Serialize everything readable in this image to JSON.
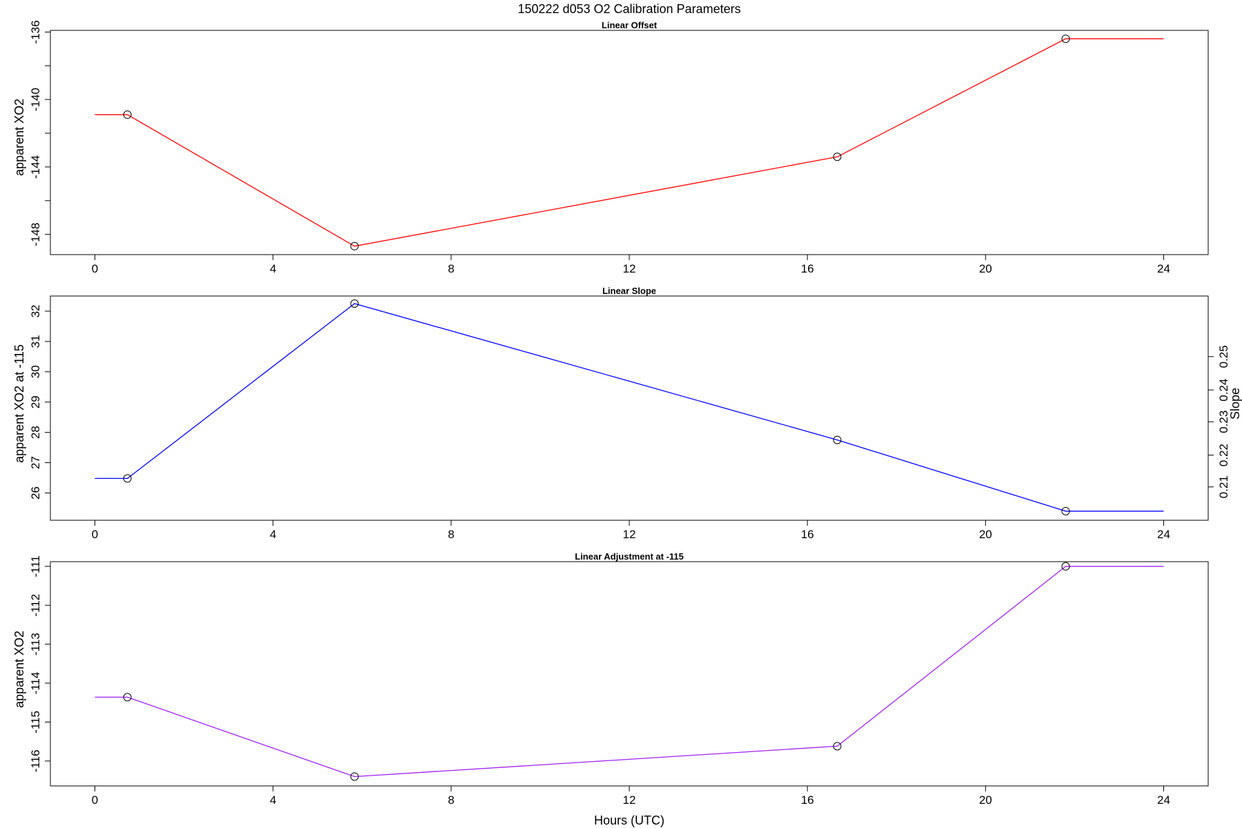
{
  "figure": {
    "title": "150222   d053   O2 Calibration Parameters",
    "xlabel": "Hours (UTC)"
  },
  "chart_data": [
    {
      "type": "line",
      "title": "Linear Offset",
      "xlabel": "",
      "ylabel": "apparent XO2",
      "xlim": [
        -1.0,
        25.0
      ],
      "ylim": [
        -149.2,
        -135.9
      ],
      "x_ticks": [
        0,
        4,
        8,
        12,
        16,
        20,
        24
      ],
      "y_ticks": [
        -136,
        -140,
        -144,
        -148
      ],
      "y_minor_ticks": [
        -138,
        -142,
        -146
      ],
      "color": "#ff0000",
      "x": [
        0.0,
        0.73,
        5.83,
        16.67,
        21.8,
        24.0
      ],
      "values": [
        -140.9,
        -140.9,
        -148.7,
        -143.4,
        -136.4,
        -136.4
      ],
      "markers": {
        "x": [
          0.73,
          5.83,
          16.67,
          21.8
        ],
        "values": [
          -140.9,
          -148.7,
          -143.4,
          -136.4
        ]
      }
    },
    {
      "type": "line",
      "title": "Linear Slope",
      "xlabel": "",
      "ylabel": "apparent XO2 at -115",
      "y2label": "Slope",
      "xlim": [
        -1.0,
        25.0
      ],
      "ylim": [
        25.1,
        32.5
      ],
      "x_ticks": [
        0,
        4,
        8,
        12,
        16,
        20,
        24
      ],
      "y_ticks": [
        26,
        27,
        28,
        29,
        30,
        31,
        32
      ],
      "y2_ticks": [
        0.21,
        0.22,
        0.23,
        0.24,
        0.25
      ],
      "y2_positions": [
        26.2,
        27.25,
        28.35,
        29.4,
        30.5
      ],
      "color": "#0000ff",
      "x": [
        0.0,
        0.73,
        5.83,
        16.67,
        21.8,
        24.0
      ],
      "values": [
        26.48,
        26.48,
        32.25,
        27.75,
        25.4,
        25.4
      ],
      "markers": {
        "x": [
          0.73,
          5.83,
          16.67,
          21.8
        ],
        "values": [
          26.48,
          32.25,
          27.75,
          25.4
        ]
      }
    },
    {
      "type": "line",
      "title": "Linear Adjustment at -115",
      "xlabel": "Hours (UTC)",
      "ylabel": "apparent XO2",
      "xlim": [
        -1.0,
        25.0
      ],
      "ylim": [
        -116.64,
        -110.88
      ],
      "x_ticks": [
        0,
        4,
        8,
        12,
        16,
        20,
        24
      ],
      "y_ticks": [
        -111,
        -112,
        -113,
        -114,
        -115,
        -116
      ],
      "color": "#a020f0",
      "x": [
        0.0,
        0.73,
        5.83,
        16.67,
        21.8,
        24.0
      ],
      "values": [
        -114.36,
        -114.36,
        -116.4,
        -115.62,
        -111.0,
        -111.0
      ],
      "markers": {
        "x": [
          0.73,
          5.83,
          16.67,
          21.8
        ],
        "values": [
          -114.36,
          -116.4,
          -115.62,
          -111.0
        ]
      }
    }
  ]
}
